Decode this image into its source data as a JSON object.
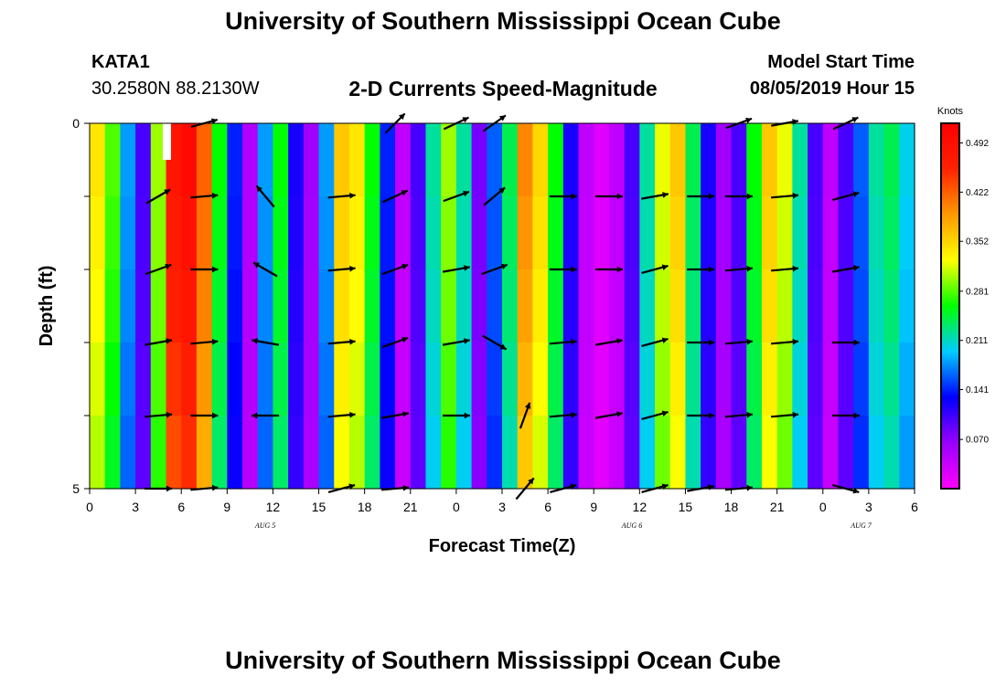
{
  "header": {
    "title": "University of Southern Mississippi Ocean Cube",
    "station_id": "KATA1",
    "station_coords": "30.2580N 88.2130W",
    "plot_title": "2-D Currents Speed-Magnitude",
    "model_start_label": "Model Start Time",
    "model_start_value": "08/05/2019 Hour 15"
  },
  "footer": {
    "title": "University of Southern Mississippi Ocean Cube"
  },
  "chart_data": {
    "type": "heatmap",
    "title": "2-D Currents Speed-Magnitude",
    "xlabel": "Forecast Time(Z)",
    "ylabel": "Depth (ft)",
    "x_ticks": [
      "0",
      "3",
      "6",
      "9",
      "12",
      "15",
      "18",
      "21",
      "0",
      "3",
      "6",
      "9",
      "12",
      "15",
      "18",
      "21",
      "0",
      "3",
      "6"
    ],
    "x_range": [
      0,
      54
    ],
    "y_ticks": [
      "0",
      "5"
    ],
    "y_range": [
      0,
      5
    ],
    "date_labels": [
      {
        "text": "AUG 5",
        "hour": 11.5
      },
      {
        "text": "AUG 6",
        "hour": 35.5
      },
      {
        "text": "AUG 7",
        "hour": 50.5
      }
    ],
    "colorbar": {
      "unit": "Knots",
      "range": [
        0,
        0.52
      ],
      "ticks": [
        0.492,
        0.422,
        0.352,
        0.281,
        0.211,
        0.141,
        0.07
      ],
      "tick_labels": [
        "0.492",
        "0.422",
        "0.352",
        "0.281",
        "0.211",
        "0.141",
        "0.070"
      ],
      "colors": [
        "#ff00ff",
        "#9900ff",
        "#0000ff",
        "#00ccff",
        "#00ff00",
        "#ffff00",
        "#ff9900",
        "#ff2200",
        "#ff0000"
      ]
    },
    "speed_knots_by_hour": [
      0.34,
      0.28,
      0.18,
      0.1,
      0.3,
      0.48,
      0.5,
      0.42,
      0.26,
      0.14,
      0.05,
      0.18,
      0.26,
      0.12,
      0.06,
      0.18,
      0.36,
      0.34,
      0.26,
      0.14,
      0.04,
      0.1,
      0.22,
      0.3,
      0.22,
      0.08,
      0.16,
      0.24,
      0.4,
      0.35,
      0.26,
      0.12,
      0.04,
      0.02,
      0.04,
      0.1,
      0.22,
      0.32,
      0.36,
      0.24,
      0.12,
      0.06,
      0.1,
      0.26,
      0.36,
      0.32,
      0.22,
      0.1,
      0.04,
      0.1,
      0.16,
      0.22,
      0.24,
      0.2
    ],
    "speed_depth_factor": [
      1.0,
      0.98,
      0.96,
      0.93,
      0.9
    ],
    "vectors": [
      {
        "hour": 4.5,
        "depth": 1,
        "angle": -30
      },
      {
        "hour": 4.5,
        "depth": 2,
        "angle": -20
      },
      {
        "hour": 4.5,
        "depth": 3,
        "angle": -10
      },
      {
        "hour": 4.5,
        "depth": 4,
        "angle": -5
      },
      {
        "hour": 4.5,
        "depth": 5,
        "angle": 0
      },
      {
        "hour": 7.5,
        "depth": 0,
        "angle": -15
      },
      {
        "hour": 7.5,
        "depth": 1,
        "angle": -5
      },
      {
        "hour": 7.5,
        "depth": 2,
        "angle": 0
      },
      {
        "hour": 7.5,
        "depth": 3,
        "angle": -5
      },
      {
        "hour": 7.5,
        "depth": 4,
        "angle": 0
      },
      {
        "hour": 7.5,
        "depth": 5,
        "angle": -5
      },
      {
        "hour": 11.5,
        "depth": 1,
        "angle": -130
      },
      {
        "hour": 11.5,
        "depth": 2,
        "angle": -150
      },
      {
        "hour": 11.5,
        "depth": 3,
        "angle": -170
      },
      {
        "hour": 11.5,
        "depth": 4,
        "angle": 180
      },
      {
        "hour": 16.5,
        "depth": 1,
        "angle": -5
      },
      {
        "hour": 16.5,
        "depth": 2,
        "angle": -5
      },
      {
        "hour": 16.5,
        "depth": 3,
        "angle": -5
      },
      {
        "hour": 16.5,
        "depth": 4,
        "angle": -5
      },
      {
        "hour": 16.5,
        "depth": 5,
        "angle": -15
      },
      {
        "hour": 20.0,
        "depth": 0,
        "angle": -45
      },
      {
        "hour": 20.0,
        "depth": 1,
        "angle": -25
      },
      {
        "hour": 20.0,
        "depth": 2,
        "angle": -20
      },
      {
        "hour": 20.0,
        "depth": 3,
        "angle": -20
      },
      {
        "hour": 20.0,
        "depth": 4,
        "angle": -10
      },
      {
        "hour": 20.0,
        "depth": 5,
        "angle": -5
      },
      {
        "hour": 24.0,
        "depth": 0,
        "angle": -25
      },
      {
        "hour": 24.0,
        "depth": 1,
        "angle": -20
      },
      {
        "hour": 24.0,
        "depth": 2,
        "angle": -10
      },
      {
        "hour": 24.0,
        "depth": 3,
        "angle": -10
      },
      {
        "hour": 24.0,
        "depth": 4,
        "angle": 0
      },
      {
        "hour": 26.5,
        "depth": 0,
        "angle": -35
      },
      {
        "hour": 26.5,
        "depth": 1,
        "angle": -40
      },
      {
        "hour": 26.5,
        "depth": 2,
        "angle": -20
      },
      {
        "hour": 26.5,
        "depth": 3,
        "angle": 30
      },
      {
        "hour": 28.5,
        "depth": 4,
        "angle": -70
      },
      {
        "hour": 28.5,
        "depth": 5,
        "angle": -50
      },
      {
        "hour": 31.0,
        "depth": 1,
        "angle": 0
      },
      {
        "hour": 31.0,
        "depth": 2,
        "angle": 0
      },
      {
        "hour": 31.0,
        "depth": 3,
        "angle": -5
      },
      {
        "hour": 31.0,
        "depth": 4,
        "angle": -5
      },
      {
        "hour": 31.0,
        "depth": 5,
        "angle": -15
      },
      {
        "hour": 34.0,
        "depth": 1,
        "angle": 0
      },
      {
        "hour": 34.0,
        "depth": 2,
        "angle": 0
      },
      {
        "hour": 34.0,
        "depth": 3,
        "angle": -10
      },
      {
        "hour": 34.0,
        "depth": 4,
        "angle": -10
      },
      {
        "hour": 37.0,
        "depth": 1,
        "angle": -10
      },
      {
        "hour": 37.0,
        "depth": 2,
        "angle": -15
      },
      {
        "hour": 37.0,
        "depth": 3,
        "angle": -15
      },
      {
        "hour": 37.0,
        "depth": 4,
        "angle": -15
      },
      {
        "hour": 37.0,
        "depth": 5,
        "angle": -15
      },
      {
        "hour": 40.0,
        "depth": 1,
        "angle": 0
      },
      {
        "hour": 40.0,
        "depth": 2,
        "angle": 0
      },
      {
        "hour": 40.0,
        "depth": 3,
        "angle": 0
      },
      {
        "hour": 40.0,
        "depth": 4,
        "angle": 0
      },
      {
        "hour": 40.0,
        "depth": 5,
        "angle": -10
      },
      {
        "hour": 42.5,
        "depth": 0,
        "angle": -20
      },
      {
        "hour": 42.5,
        "depth": 1,
        "angle": 0
      },
      {
        "hour": 42.5,
        "depth": 2,
        "angle": -5
      },
      {
        "hour": 42.5,
        "depth": 3,
        "angle": -5
      },
      {
        "hour": 42.5,
        "depth": 4,
        "angle": -5
      },
      {
        "hour": 42.5,
        "depth": 5,
        "angle": -5
      },
      {
        "hour": 45.5,
        "depth": 0,
        "angle": -10
      },
      {
        "hour": 45.5,
        "depth": 1,
        "angle": -5
      },
      {
        "hour": 45.5,
        "depth": 2,
        "angle": -5
      },
      {
        "hour": 45.5,
        "depth": 3,
        "angle": -5
      },
      {
        "hour": 45.5,
        "depth": 4,
        "angle": -5
      },
      {
        "hour": 49.5,
        "depth": 0,
        "angle": -25
      },
      {
        "hour": 49.5,
        "depth": 1,
        "angle": -15
      },
      {
        "hour": 49.5,
        "depth": 2,
        "angle": -10
      },
      {
        "hour": 49.5,
        "depth": 3,
        "angle": 0
      },
      {
        "hour": 49.5,
        "depth": 4,
        "angle": 0
      },
      {
        "hour": 49.5,
        "depth": 5,
        "angle": 15
      }
    ]
  }
}
